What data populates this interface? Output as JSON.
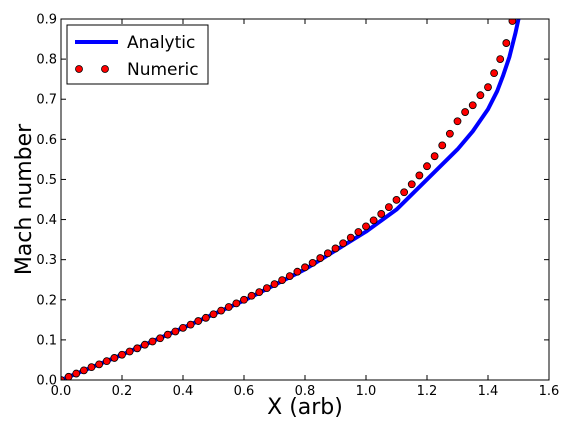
{
  "chart_data": {
    "type": "line",
    "title": "",
    "xlabel": "X (arb)",
    "ylabel": "Mach number",
    "xlim": [
      0.0,
      1.6
    ],
    "ylim": [
      0.0,
      0.9
    ],
    "xticks": [
      "0.0",
      "0.2",
      "0.4",
      "0.6",
      "0.8",
      "1.0",
      "1.2",
      "1.4",
      "1.6"
    ],
    "yticks": [
      "0.0",
      "0.1",
      "0.2",
      "0.3",
      "0.4",
      "0.5",
      "0.6",
      "0.7",
      "0.8",
      "0.9"
    ],
    "grid": false,
    "legend_position": "top-left",
    "series": [
      {
        "name": "Analytic",
        "style": "line",
        "color": "#0000ff",
        "x": [
          0.0,
          0.2,
          0.4,
          0.6,
          0.8,
          1.0,
          1.1,
          1.2,
          1.3,
          1.35,
          1.4,
          1.43,
          1.45,
          1.47,
          1.48,
          1.49,
          1.5
        ],
        "y": [
          0.0,
          0.063,
          0.13,
          0.198,
          0.276,
          0.37,
          0.425,
          0.5,
          0.575,
          0.62,
          0.675,
          0.72,
          0.76,
          0.805,
          0.835,
          0.865,
          0.9
        ]
      },
      {
        "name": "Numeric",
        "style": "markers",
        "color": "#ff0000",
        "x": [
          0.0,
          0.025,
          0.05,
          0.075,
          0.1,
          0.125,
          0.15,
          0.175,
          0.2,
          0.225,
          0.25,
          0.275,
          0.3,
          0.325,
          0.35,
          0.375,
          0.4,
          0.425,
          0.45,
          0.475,
          0.5,
          0.525,
          0.55,
          0.575,
          0.6,
          0.625,
          0.65,
          0.675,
          0.7,
          0.725,
          0.75,
          0.775,
          0.8,
          0.825,
          0.85,
          0.875,
          0.9,
          0.925,
          0.95,
          0.975,
          1.0,
          1.025,
          1.05,
          1.075,
          1.1,
          1.125,
          1.15,
          1.175,
          1.2,
          1.225,
          1.25,
          1.275,
          1.3,
          1.325,
          1.35,
          1.375,
          1.4,
          1.42,
          1.44,
          1.46,
          1.48
        ],
        "y": [
          0.0,
          0.008,
          0.016,
          0.024,
          0.032,
          0.039,
          0.047,
          0.055,
          0.063,
          0.071,
          0.079,
          0.088,
          0.096,
          0.104,
          0.113,
          0.121,
          0.13,
          0.138,
          0.147,
          0.155,
          0.164,
          0.173,
          0.182,
          0.191,
          0.2,
          0.21,
          0.219,
          0.229,
          0.239,
          0.249,
          0.259,
          0.27,
          0.281,
          0.292,
          0.304,
          0.316,
          0.328,
          0.341,
          0.355,
          0.369,
          0.383,
          0.398,
          0.414,
          0.431,
          0.449,
          0.468,
          0.488,
          0.51,
          0.533,
          0.558,
          0.585,
          0.614,
          0.645,
          0.668,
          0.685,
          0.71,
          0.73,
          0.765,
          0.8,
          0.84,
          0.895
        ]
      }
    ]
  }
}
